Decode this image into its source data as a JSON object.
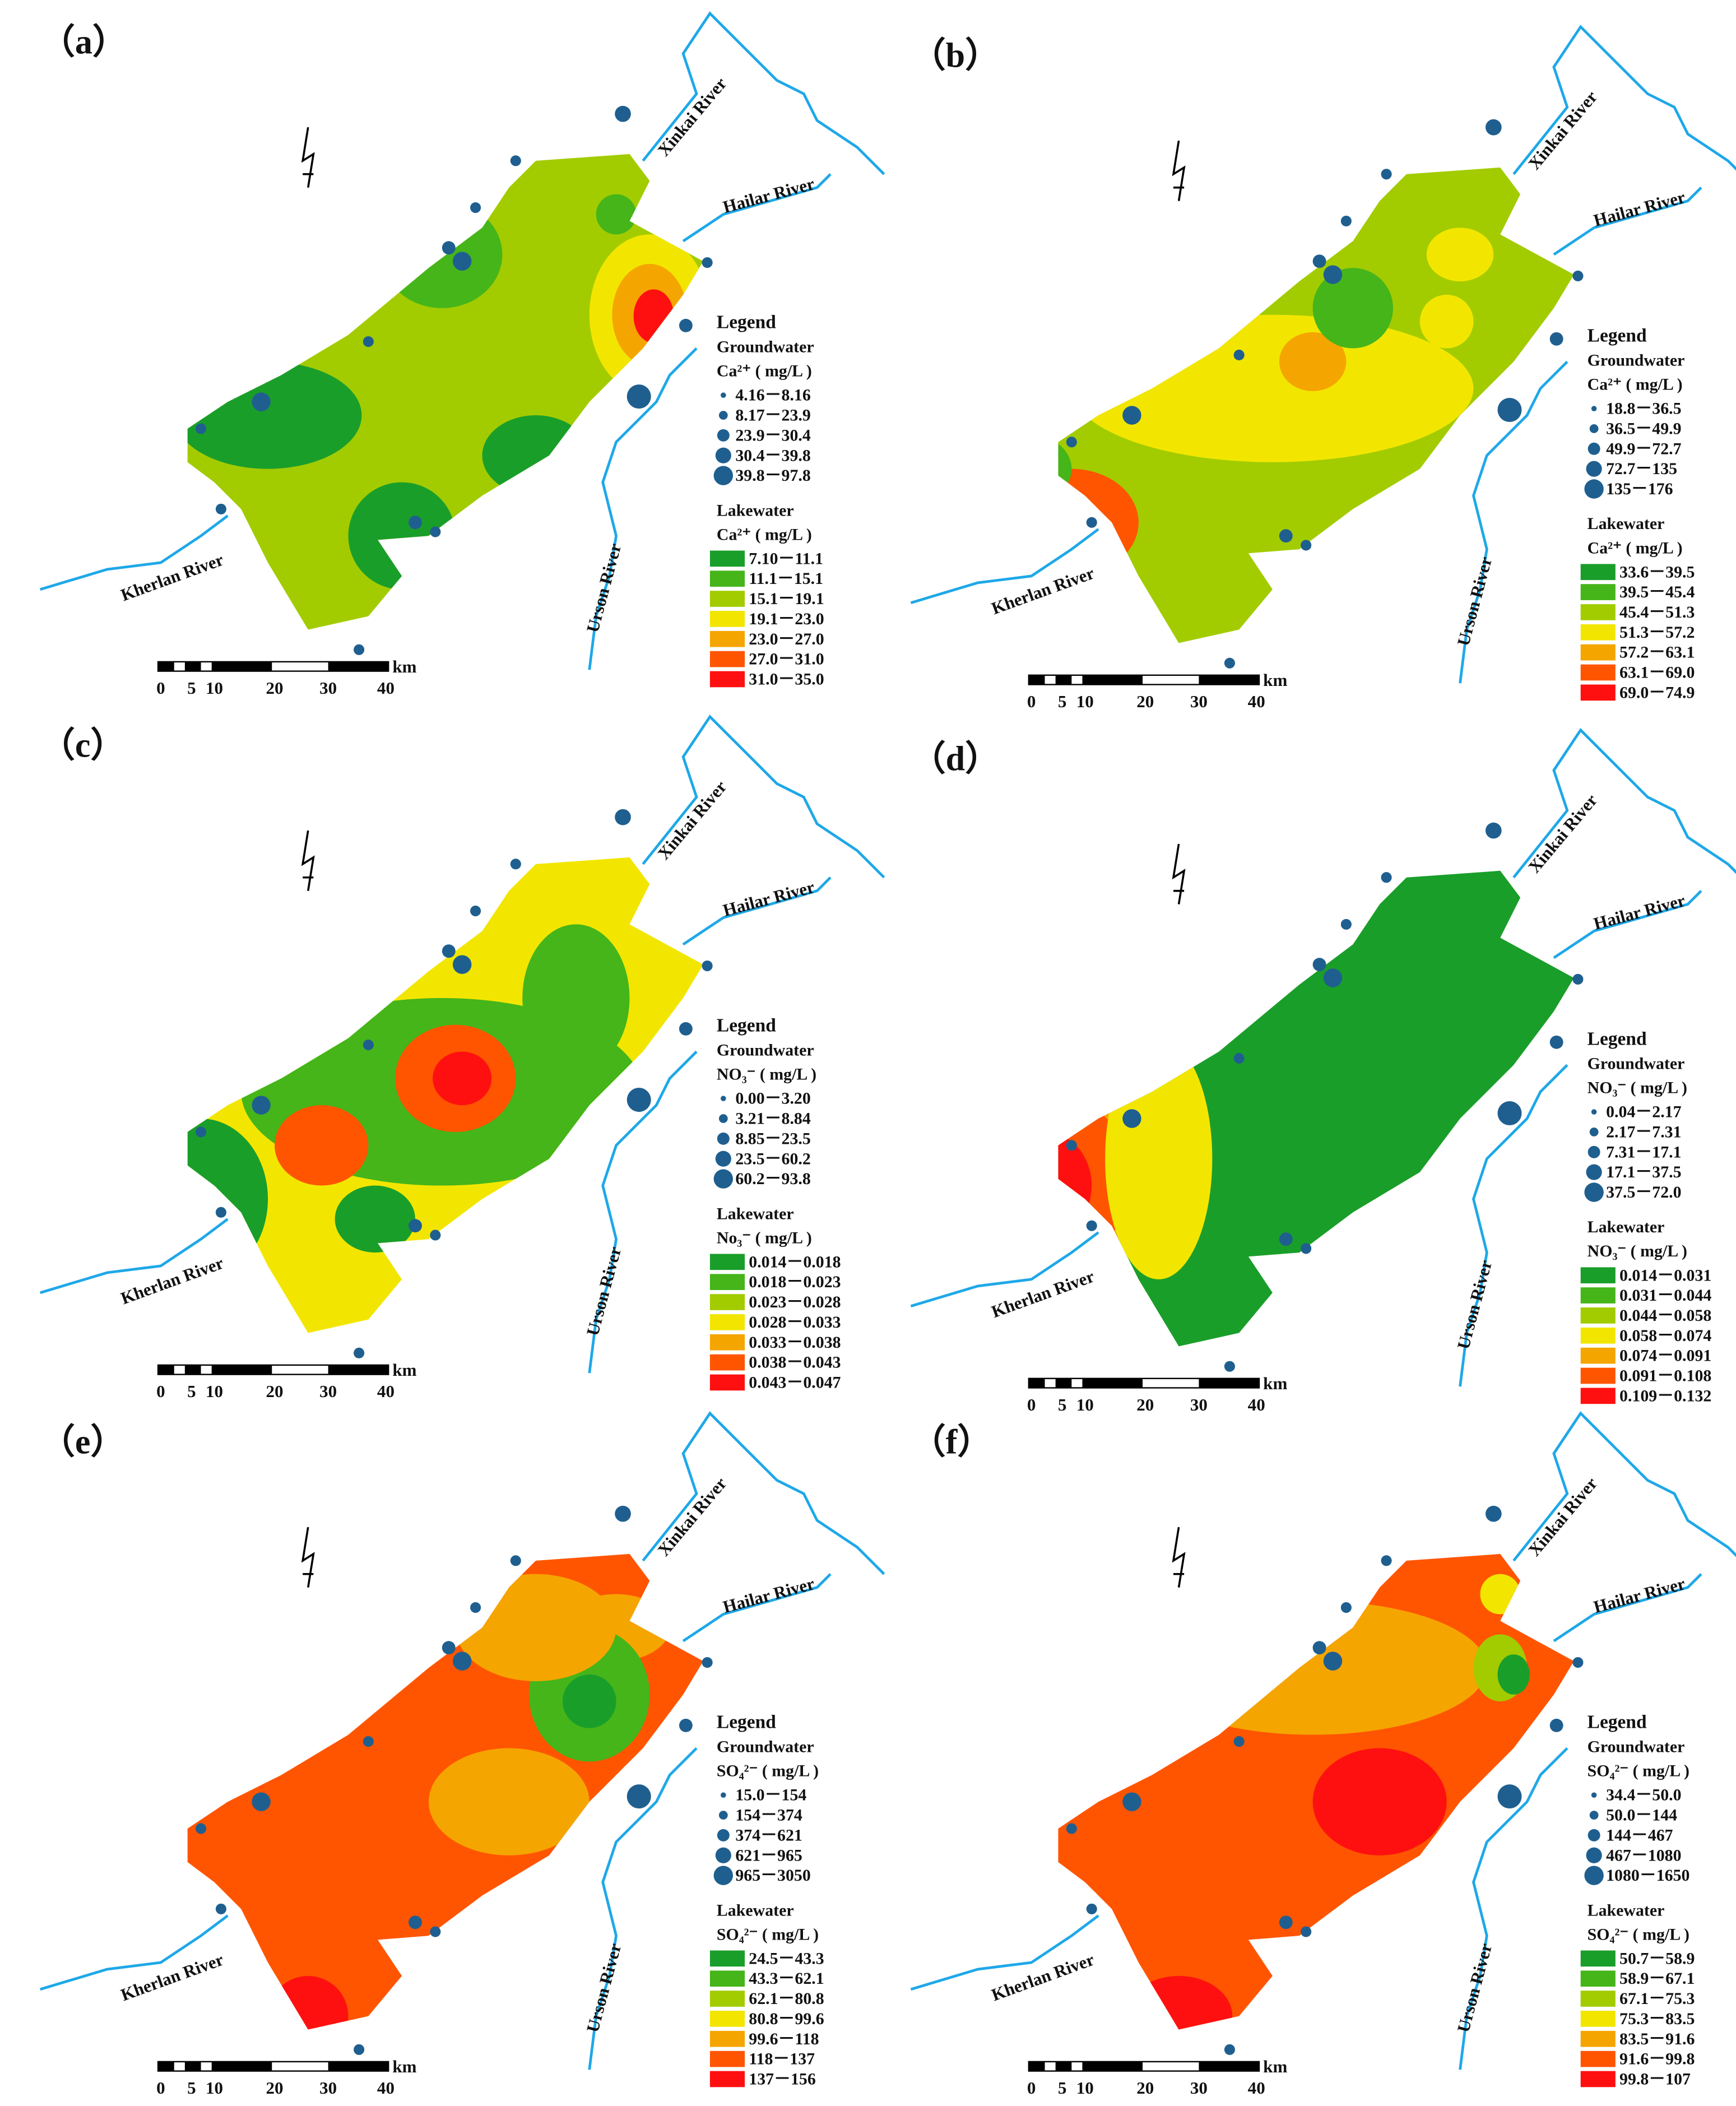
{
  "panels": [
    {
      "label": "（a）",
      "rivers": [
        "Xinkai River",
        "Hailar River",
        "Urson River",
        "Kherlan River"
      ],
      "legend": {
        "title": "Legend",
        "groundwater": {
          "title": "Groundwater",
          "param": "Ca²⁺ ( mg/L )",
          "classes": [
            "4.16－8.16",
            "8.17－23.9",
            "23.9－30.4",
            "30.4－39.8",
            "39.8－97.8"
          ]
        },
        "lakewater": {
          "title": "Lakewater",
          "param": "Ca²⁺ ( mg/L )",
          "classes": [
            "7.10－11.1",
            "11.1－15.1",
            "15.1－19.1",
            "19.1－23.0",
            "23.0－27.0",
            "27.0－31.0",
            "31.0－35.0"
          ]
        }
      },
      "scale": [
        "0",
        "5",
        "10",
        "20",
        "30",
        "40"
      ],
      "scale_unit": "km"
    },
    {
      "label": "（b）",
      "rivers": [
        "Xinkai River",
        "Hailar River",
        "Urson River",
        "Kherlan River"
      ],
      "legend": {
        "title": "Legend",
        "groundwater": {
          "title": "Groundwater",
          "param": "Ca²⁺ ( mg/L )",
          "classes": [
            "18.8－36.5",
            "36.5－49.9",
            "49.9－72.7",
            "72.7－135",
            "135－176"
          ]
        },
        "lakewater": {
          "title": "Lakewater",
          "param": "Ca²⁺ ( mg/L )",
          "classes": [
            "33.6－39.5",
            "39.5－45.4",
            "45.4－51.3",
            "51.3－57.2",
            "57.2－63.1",
            "63.1－69.0",
            "69.0－74.9"
          ]
        }
      },
      "scale": [
        "0",
        "5",
        "10",
        "20",
        "30",
        "40"
      ],
      "scale_unit": "km"
    },
    {
      "label": "（c）",
      "rivers": [
        "Xinkai River",
        "Hailar River",
        "Urson River",
        "Kherlan River"
      ],
      "legend": {
        "title": "Legend",
        "groundwater": {
          "title": "Groundwater",
          "param": "NO₃⁻ ( mg/L )",
          "classes": [
            "0.00－3.20",
            "3.21－8.84",
            "8.85－23.5",
            "23.5－60.2",
            "60.2－93.8"
          ]
        },
        "lakewater": {
          "title": "Lakewater",
          "param": "No₃⁻ ( mg/L )",
          "classes": [
            "0.014－0.018",
            "0.018－0.023",
            "0.023－0.028",
            "0.028－0.033",
            "0.033－0.038",
            "0.038－0.043",
            "0.043－0.047"
          ]
        }
      },
      "scale": [
        "0",
        "5",
        "10",
        "20",
        "30",
        "40"
      ],
      "scale_unit": "km"
    },
    {
      "label": "（d）",
      "rivers": [
        "Xinkai River",
        "Hailar River",
        "Urson River",
        "Kherlan River"
      ],
      "legend": {
        "title": "Legend",
        "groundwater": {
          "title": "Groundwater",
          "param": "NO₃⁻ ( mg/L )",
          "classes": [
            "0.04－2.17",
            "2.17－7.31",
            "7.31－17.1",
            "17.1－37.5",
            "37.5－72.0"
          ]
        },
        "lakewater": {
          "title": "Lakewater",
          "param": "NO₃⁻ ( mg/L )",
          "classes": [
            "0.014－0.031",
            "0.031－0.044",
            "0.044－0.058",
            "0.058－0.074",
            "0.074－0.091",
            "0.091－0.108",
            "0.109－0.132"
          ]
        }
      },
      "scale": [
        "0",
        "5",
        "10",
        "20",
        "30",
        "40"
      ],
      "scale_unit": "km"
    },
    {
      "label": "（e）",
      "rivers": [
        "Xinkai River",
        "Hailar River",
        "Urson River",
        "Kherlan River"
      ],
      "legend": {
        "title": "Legend",
        "groundwater": {
          "title": "Groundwater",
          "param": "SO₄²⁻ ( mg/L )",
          "classes": [
            "15.0－154",
            "154－374",
            "374－621",
            "621－965",
            "965－3050"
          ]
        },
        "lakewater": {
          "title": "Lakewater",
          "param": "SO₄²⁻ ( mg/L )",
          "classes": [
            "24.5－43.3",
            "43.3－62.1",
            "62.1－80.8",
            "80.8－99.6",
            "99.6－118",
            "118－137",
            "137－156"
          ]
        }
      },
      "scale": [
        "0",
        "5",
        "10",
        "20",
        "30",
        "40"
      ],
      "scale_unit": "km"
    },
    {
      "label": "（f）",
      "rivers": [
        "Xinkai River",
        "Hailar River",
        "Urson River",
        "Kherlan River"
      ],
      "legend": {
        "title": "Legend",
        "groundwater": {
          "title": "Groundwater",
          "param": "SO₄²⁻ ( mg/L )",
          "classes": [
            "34.4－50.0",
            "50.0－144",
            "144－467",
            "467－1080",
            "1080－1650"
          ]
        },
        "lakewater": {
          "title": "Lakewater",
          "param": "SO₄²⁻ ( mg/L )",
          "classes": [
            "50.7－58.9",
            "58.9－67.1",
            "67.1－75.3",
            "75.3－83.5",
            "83.5－91.6",
            "91.6－99.8",
            "99.8－107"
          ]
        }
      },
      "scale": [
        "0",
        "5",
        "10",
        "20",
        "30",
        "40"
      ],
      "scale_unit": "km"
    }
  ],
  "lakewater_colors": [
    "#1a9e2a",
    "#45b51a",
    "#a2cc00",
    "#f2e600",
    "#f5a500",
    "#ff5500",
    "#ff1010"
  ],
  "groundwater_color": "#1f5f8f",
  "river_color": "#1ea8e8"
}
